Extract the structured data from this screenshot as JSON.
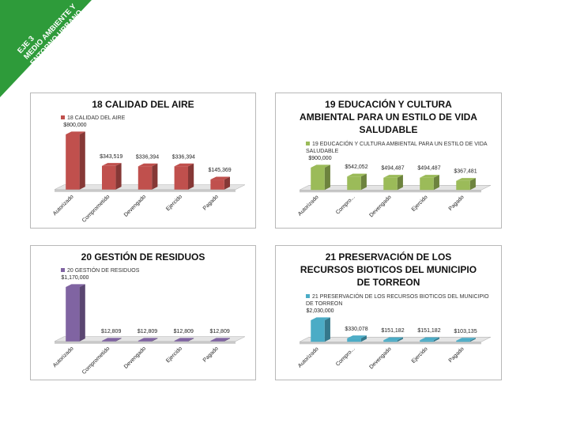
{
  "banner": [
    "EJE 3",
    "MEDIO AMBIENTE Y",
    "ENTORNO URBANO"
  ],
  "chart_data": [
    {
      "type": "bar",
      "title": "18 CALIDAD DEL AIRE",
      "categories": [
        "Autorizado",
        "Comprometido",
        "Devengado",
        "Ejercido",
        "Pagado"
      ],
      "series": [
        {
          "name": "18 CALIDAD DEL AIRE",
          "color": "#c0504d",
          "values": [
            800000,
            343519,
            336394,
            336394,
            145369
          ],
          "value_labels": [
            "$800,000",
            "$343,519",
            "$336,394",
            "$336,394",
            "$145,369"
          ]
        }
      ]
    },
    {
      "type": "bar",
      "title": "19 EDUCACIÓN Y CULTURA AMBIENTAL PARA UN ESTILO DE VIDA SALUDABLE",
      "categories": [
        "Autorizado",
        "Compro...",
        "Devengado",
        "Ejercido",
        "Pagado"
      ],
      "series": [
        {
          "name": "19 EDUCACIÓN Y CULTURA AMBIENTAL PARA UN ESTILO DE VIDA SALUDABLE",
          "color": "#9bbb59",
          "values": [
            900000,
            542052,
            494487,
            494487,
            367481
          ],
          "value_labels": [
            "$900,000",
            "$542,052",
            "$494,487",
            "$494,487",
            "$367,481"
          ]
        }
      ]
    },
    {
      "type": "bar",
      "title": "20 GESTIÓN DE RESIDUOS",
      "categories": [
        "Autorizado",
        "Comprometido",
        "Devengado",
        "Ejercido",
        "Pagado"
      ],
      "series": [
        {
          "name": "20 GESTIÓN DE RESIDUOS",
          "color": "#8064a2",
          "values": [
            1170000,
            12809,
            12809,
            12809,
            12809
          ],
          "value_labels": [
            "$1,170,000",
            "$12,809",
            "$12,809",
            "$12,809",
            "$12,809"
          ]
        }
      ]
    },
    {
      "type": "bar",
      "title": "21 PRESERVACIÓN DE LOS RECURSOS BIOTICOS DEL MUNICIPIO DE TORREON",
      "categories": [
        "Autorizado",
        "Compro...",
        "Devengado",
        "Ejercido",
        "Pagado"
      ],
      "series": [
        {
          "name": "21 PRESERVACIÓN DE LOS RECURSOS BIOTICOS DEL MUNICIPIO DE TORREON",
          "color": "#4bacc6",
          "values": [
            2030000,
            330078,
            151182,
            151182,
            103135
          ],
          "value_labels": [
            "$2,030,000",
            "$330,078",
            "$151,182",
            "$151,182",
            "$103,135"
          ]
        }
      ]
    }
  ]
}
